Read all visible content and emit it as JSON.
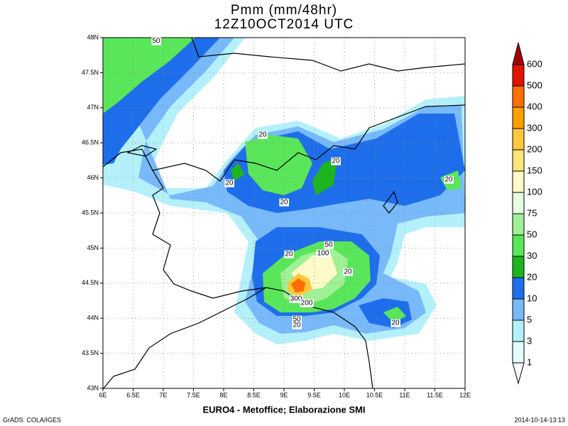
{
  "title": [
    "Pmm (mm/48hr)",
    "12Z10OCT2014 UTC"
  ],
  "x_labels": [
    "6E",
    "6.5E",
    "7E",
    "7.5E",
    "8E",
    "8.5E",
    "9E",
    "9.5E",
    "10E",
    "10.5E",
    "11E",
    "11.5E",
    "12E"
  ],
  "y_labels": [
    "43N",
    "43.5N",
    "44N",
    "44.5N",
    "45N",
    "45.5N",
    "46N",
    "46.5N",
    "47N",
    "47.5N",
    "48N"
  ],
  "colorbar": {
    "labels": [
      "1",
      "3",
      "5",
      "10",
      "20",
      "30",
      "50",
      "75",
      "100",
      "150",
      "200",
      "300",
      "400",
      "500",
      "600"
    ],
    "colors": [
      "#ffffff",
      "#e1ffff",
      "#b4f0fa",
      "#78b9fa",
      "#1e6eeb",
      "#1eb41e",
      "#5ae65a",
      "#a0f096",
      "#e6ffe1",
      "#fffac8",
      "#ffe678",
      "#ffc83c",
      "#ffa000",
      "#ff6e00",
      "#e11400",
      "#a50000"
    ]
  },
  "contour_labels": [
    "50",
    "20",
    "20",
    "20",
    "20",
    "20",
    "50",
    "100",
    "20",
    "20",
    "300",
    "200",
    "50",
    "20",
    "20"
  ],
  "footer": {
    "source": "EURO4 - Metoffice; Elaborazione SMI",
    "credit": "GrADS: COLA/IGES",
    "timestamp": "2014-10-14-13:13"
  }
}
